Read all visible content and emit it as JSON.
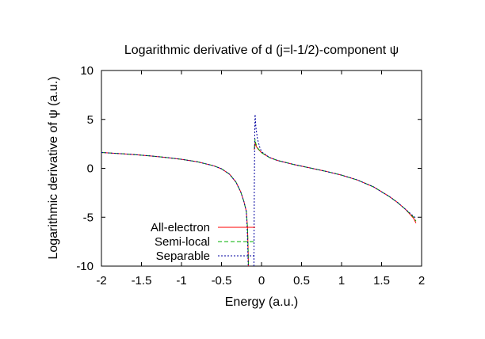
{
  "chart_data": {
    "type": "line",
    "title": "Logarithmic derivative of d (j=l-1/2)-component ψ",
    "xlabel": "Energy (a.u.)",
    "ylabel": "Logarithmic derivative of ψ (a.u.)",
    "xlim": [
      -2,
      2
    ],
    "ylim": [
      -10,
      10
    ],
    "xticks": [
      -2,
      -1.5,
      -1,
      -0.5,
      0,
      0.5,
      1,
      1.5,
      2
    ],
    "yticks": [
      -10,
      -5,
      0,
      5,
      10
    ],
    "xtick_labels": [
      "-2",
      "-1.5",
      "-1",
      "-0.5",
      "0",
      "0.5",
      "1",
      "1.5",
      "2"
    ],
    "ytick_labels": [
      "-10",
      "-5",
      "0",
      "5",
      "10"
    ],
    "grid": false,
    "legend_position": "bottom-left",
    "series": [
      {
        "name": "All-electron",
        "color": "#ff0000",
        "dash": "solid",
        "segments": [
          [
            [
              -2.0,
              1.62
            ],
            [
              -1.8,
              1.52
            ],
            [
              -1.6,
              1.41
            ],
            [
              -1.4,
              1.28
            ],
            [
              -1.2,
              1.12
            ],
            [
              -1.0,
              0.92
            ],
            [
              -0.8,
              0.66
            ],
            [
              -0.6,
              0.27
            ],
            [
              -0.5,
              -0.05
            ],
            [
              -0.4,
              -0.6
            ],
            [
              -0.32,
              -1.4
            ],
            [
              -0.26,
              -2.4
            ],
            [
              -0.22,
              -3.4
            ],
            [
              -0.19,
              -4.4
            ],
            [
              -0.175,
              -6.0
            ],
            [
              -0.168,
              -8.0
            ],
            [
              -0.163,
              -10.0
            ]
          ],
          [
            [
              -0.09,
              1.9
            ],
            [
              -0.08,
              2.6
            ],
            [
              -0.07,
              2.3
            ],
            [
              -0.05,
              2.05
            ],
            [
              0.0,
              1.6
            ],
            [
              0.1,
              1.1
            ],
            [
              0.2,
              0.8
            ],
            [
              0.4,
              0.4
            ],
            [
              0.6,
              0.05
            ],
            [
              0.8,
              -0.3
            ],
            [
              1.0,
              -0.7
            ],
            [
              1.2,
              -1.2
            ],
            [
              1.4,
              -1.9
            ],
            [
              1.6,
              -2.9
            ],
            [
              1.7,
              -3.5
            ],
            [
              1.8,
              -4.2
            ],
            [
              1.9,
              -5.1
            ],
            [
              1.93,
              -5.6
            ]
          ]
        ]
      },
      {
        "name": "Semi-local",
        "color": "#00b000",
        "dash": "5,3",
        "segments": [
          [
            [
              -2.0,
              1.62
            ],
            [
              -1.8,
              1.52
            ],
            [
              -1.6,
              1.41
            ],
            [
              -1.4,
              1.28
            ],
            [
              -1.2,
              1.12
            ],
            [
              -1.0,
              0.92
            ],
            [
              -0.8,
              0.66
            ],
            [
              -0.6,
              0.27
            ],
            [
              -0.5,
              -0.05
            ],
            [
              -0.4,
              -0.6
            ],
            [
              -0.32,
              -1.4
            ],
            [
              -0.26,
              -2.4
            ],
            [
              -0.22,
              -3.4
            ],
            [
              -0.19,
              -4.4
            ],
            [
              -0.175,
              -6.0
            ],
            [
              -0.168,
              -8.0
            ],
            [
              -0.163,
              -10.0
            ]
          ],
          [
            [
              -0.09,
              2.0
            ],
            [
              -0.08,
              3.0
            ],
            [
              -0.07,
              2.5
            ],
            [
              -0.05,
              2.1
            ],
            [
              0.0,
              1.6
            ],
            [
              0.1,
              1.1
            ],
            [
              0.2,
              0.8
            ],
            [
              0.4,
              0.4
            ],
            [
              0.6,
              0.05
            ],
            [
              0.8,
              -0.3
            ],
            [
              1.0,
              -0.7
            ],
            [
              1.2,
              -1.2
            ],
            [
              1.4,
              -1.9
            ],
            [
              1.6,
              -2.9
            ],
            [
              1.7,
              -3.5
            ],
            [
              1.8,
              -4.2
            ],
            [
              1.9,
              -5.0
            ],
            [
              1.93,
              -5.4
            ]
          ]
        ]
      },
      {
        "name": "Separable",
        "color": "#0000a0",
        "dash": "2,2",
        "segments": [
          [
            [
              -2.0,
              1.62
            ],
            [
              -1.8,
              1.52
            ],
            [
              -1.6,
              1.41
            ],
            [
              -1.4,
              1.28
            ],
            [
              -1.2,
              1.12
            ],
            [
              -1.0,
              0.92
            ],
            [
              -0.8,
              0.66
            ],
            [
              -0.6,
              0.27
            ],
            [
              -0.5,
              -0.05
            ],
            [
              -0.4,
              -0.6
            ],
            [
              -0.32,
              -1.4
            ],
            [
              -0.26,
              -2.4
            ],
            [
              -0.22,
              -3.4
            ],
            [
              -0.19,
              -4.4
            ],
            [
              -0.18,
              -6.0
            ],
            [
              -0.172,
              -8.0
            ],
            [
              -0.166,
              -10.0
            ]
          ],
          [
            [
              -0.095,
              -10.0
            ],
            [
              -0.09,
              -2.0
            ],
            [
              -0.085,
              3.0
            ],
            [
              -0.08,
              5.5
            ],
            [
              -0.07,
              4.2
            ],
            [
              -0.05,
              3.0
            ],
            [
              -0.02,
              2.1
            ],
            [
              0.0,
              1.7
            ],
            [
              0.1,
              1.1
            ],
            [
              0.2,
              0.8
            ],
            [
              0.4,
              0.4
            ],
            [
              0.6,
              0.05
            ],
            [
              0.8,
              -0.3
            ],
            [
              1.0,
              -0.7
            ],
            [
              1.2,
              -1.2
            ],
            [
              1.4,
              -1.9
            ],
            [
              1.6,
              -2.9
            ],
            [
              1.7,
              -3.5
            ],
            [
              1.8,
              -4.2
            ],
            [
              1.9,
              -4.9
            ],
            [
              1.93,
              -5.1
            ]
          ]
        ]
      }
    ]
  }
}
